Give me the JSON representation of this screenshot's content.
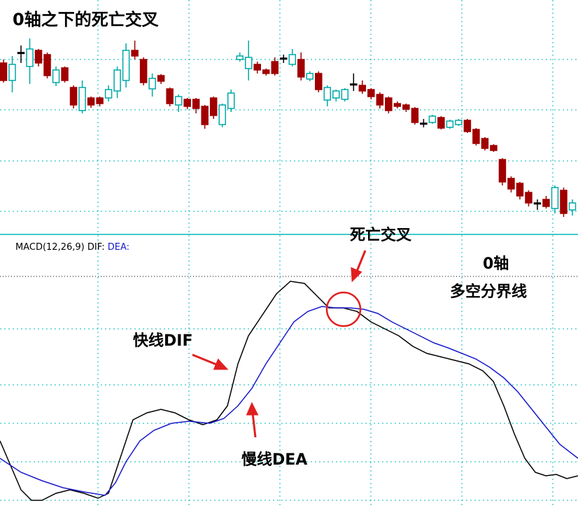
{
  "chart_data": [
    {
      "type": "candlestick",
      "title": "0轴之下的死亡交叉",
      "ylim": [
        0,
        320
      ],
      "up_color": "#00a8a8",
      "down_color": "#a00000",
      "flat_color": "#000000",
      "open": [
        230,
        205,
        245,
        225,
        248,
        242,
        202,
        223,
        195,
        162,
        180,
        180,
        180,
        190,
        205,
        248,
        235,
        193,
        212,
        193,
        170,
        178,
        178,
        168,
        180,
        142,
        165,
        235,
        222,
        228,
        220,
        232,
        237,
        228,
        235,
        207,
        215,
        177,
        180,
        178,
        200,
        198,
        192,
        185,
        180,
        172,
        170,
        165,
        144,
        145,
        152,
        138,
        142,
        148,
        135,
        122,
        112,
        92,
        65,
        58,
        45,
        30,
        35,
        22,
        48,
        20
      ],
      "high": [
        235,
        240,
        255,
        265,
        250,
        245,
        225,
        225,
        198,
        205,
        182,
        182,
        198,
        225,
        258,
        262,
        238,
        215,
        214,
        195,
        185,
        180,
        180,
        170,
        182,
        172,
        192,
        245,
        262,
        232,
        222,
        238,
        242,
        250,
        245,
        218,
        218,
        198,
        192,
        194,
        215,
        205,
        194,
        188,
        182,
        175,
        172,
        167,
        150,
        156,
        154,
        149,
        150,
        150,
        137,
        124,
        114,
        94,
        68,
        60,
        48,
        35,
        40,
        55,
        52,
        35
      ],
      "low": [
        202,
        188,
        230,
        200,
        225,
        208,
        197,
        202,
        165,
        158,
        166,
        168,
        175,
        180,
        195,
        235,
        198,
        182,
        200,
        168,
        160,
        164,
        158,
        136,
        150,
        138,
        160,
        232,
        205,
        215,
        212,
        212,
        230,
        225,
        205,
        204,
        188,
        168,
        175,
        175,
        190,
        186,
        178,
        165,
        158,
        165,
        160,
        142,
        138,
        143,
        135,
        136,
        140,
        130,
        112,
        105,
        103,
        55,
        45,
        35,
        25,
        20,
        22,
        15,
        10,
        12
      ],
      "close": [
        205,
        228,
        245,
        250,
        230,
        212,
        220,
        205,
        170,
        195,
        170,
        172,
        192,
        220,
        248,
        240,
        202,
        208,
        204,
        172,
        182,
        168,
        165,
        142,
        155,
        170,
        187,
        240,
        238,
        220,
        215,
        215,
        237,
        242,
        210,
        215,
        192,
        195,
        190,
        192,
        200,
        190,
        182,
        170,
        162,
        168,
        164,
        145,
        144,
        154,
        137,
        147,
        148,
        132,
        115,
        108,
        105,
        60,
        50,
        40,
        30,
        30,
        25,
        52,
        15,
        30
      ]
    },
    {
      "type": "line",
      "title": "MACD(12,26,9)",
      "ylim": [
        -331,
        60
      ],
      "xlim": [
        0,
        826
      ],
      "zero_line": 0,
      "series": [
        {
          "name": "DIF:",
          "color": "#000000",
          "x": [
            0,
            15,
            30,
            45,
            60,
            80,
            100,
            120,
            140,
            155,
            170,
            190,
            210,
            230,
            250,
            270,
            290,
            310,
            325,
            340,
            355,
            375,
            395,
            415,
            435,
            455,
            470,
            490,
            510,
            530,
            550,
            570,
            590,
            610,
            630,
            650,
            670,
            690,
            705,
            720,
            735,
            750,
            765,
            780,
            795,
            810,
            826
          ],
          "values": [
            -235,
            -270,
            -305,
            -320,
            -320,
            -310,
            -305,
            -310,
            -317,
            -310,
            -265,
            -205,
            -195,
            -190,
            -195,
            -205,
            -212,
            -205,
            -185,
            -125,
            -85,
            -55,
            -25,
            -7,
            -10,
            -30,
            -45,
            -45,
            -50,
            -65,
            -75,
            -85,
            -100,
            -110,
            -115,
            -120,
            -125,
            -135,
            -150,
            -185,
            -225,
            -260,
            -280,
            -285,
            -283,
            -289,
            -285
          ]
        },
        {
          "name": "DEA:",
          "color": "#1a1acc",
          "x": [
            0,
            30,
            60,
            90,
            120,
            150,
            165,
            180,
            200,
            220,
            245,
            270,
            300,
            320,
            340,
            360,
            380,
            400,
            420,
            440,
            460,
            480,
            500,
            520,
            540,
            560,
            580,
            600,
            620,
            640,
            660,
            680,
            700,
            720,
            740,
            760,
            780,
            800,
            826
          ],
          "values": [
            -260,
            -280,
            -292,
            -302,
            -308,
            -313,
            -295,
            -265,
            -235,
            -220,
            -210,
            -207,
            -210,
            -203,
            -185,
            -160,
            -125,
            -95,
            -65,
            -50,
            -43,
            -45,
            -45,
            -47,
            -53,
            -65,
            -75,
            -85,
            -95,
            -102,
            -110,
            -118,
            -130,
            -145,
            -165,
            -190,
            -215,
            -240,
            -260
          ]
        }
      ],
      "annotations": {
        "cross": "死亡交叉",
        "zero_axis": "0轴",
        "zero_axis_note": "多空分界线",
        "fast": "快线DIF",
        "slow": "慢线DEA"
      }
    }
  ]
}
